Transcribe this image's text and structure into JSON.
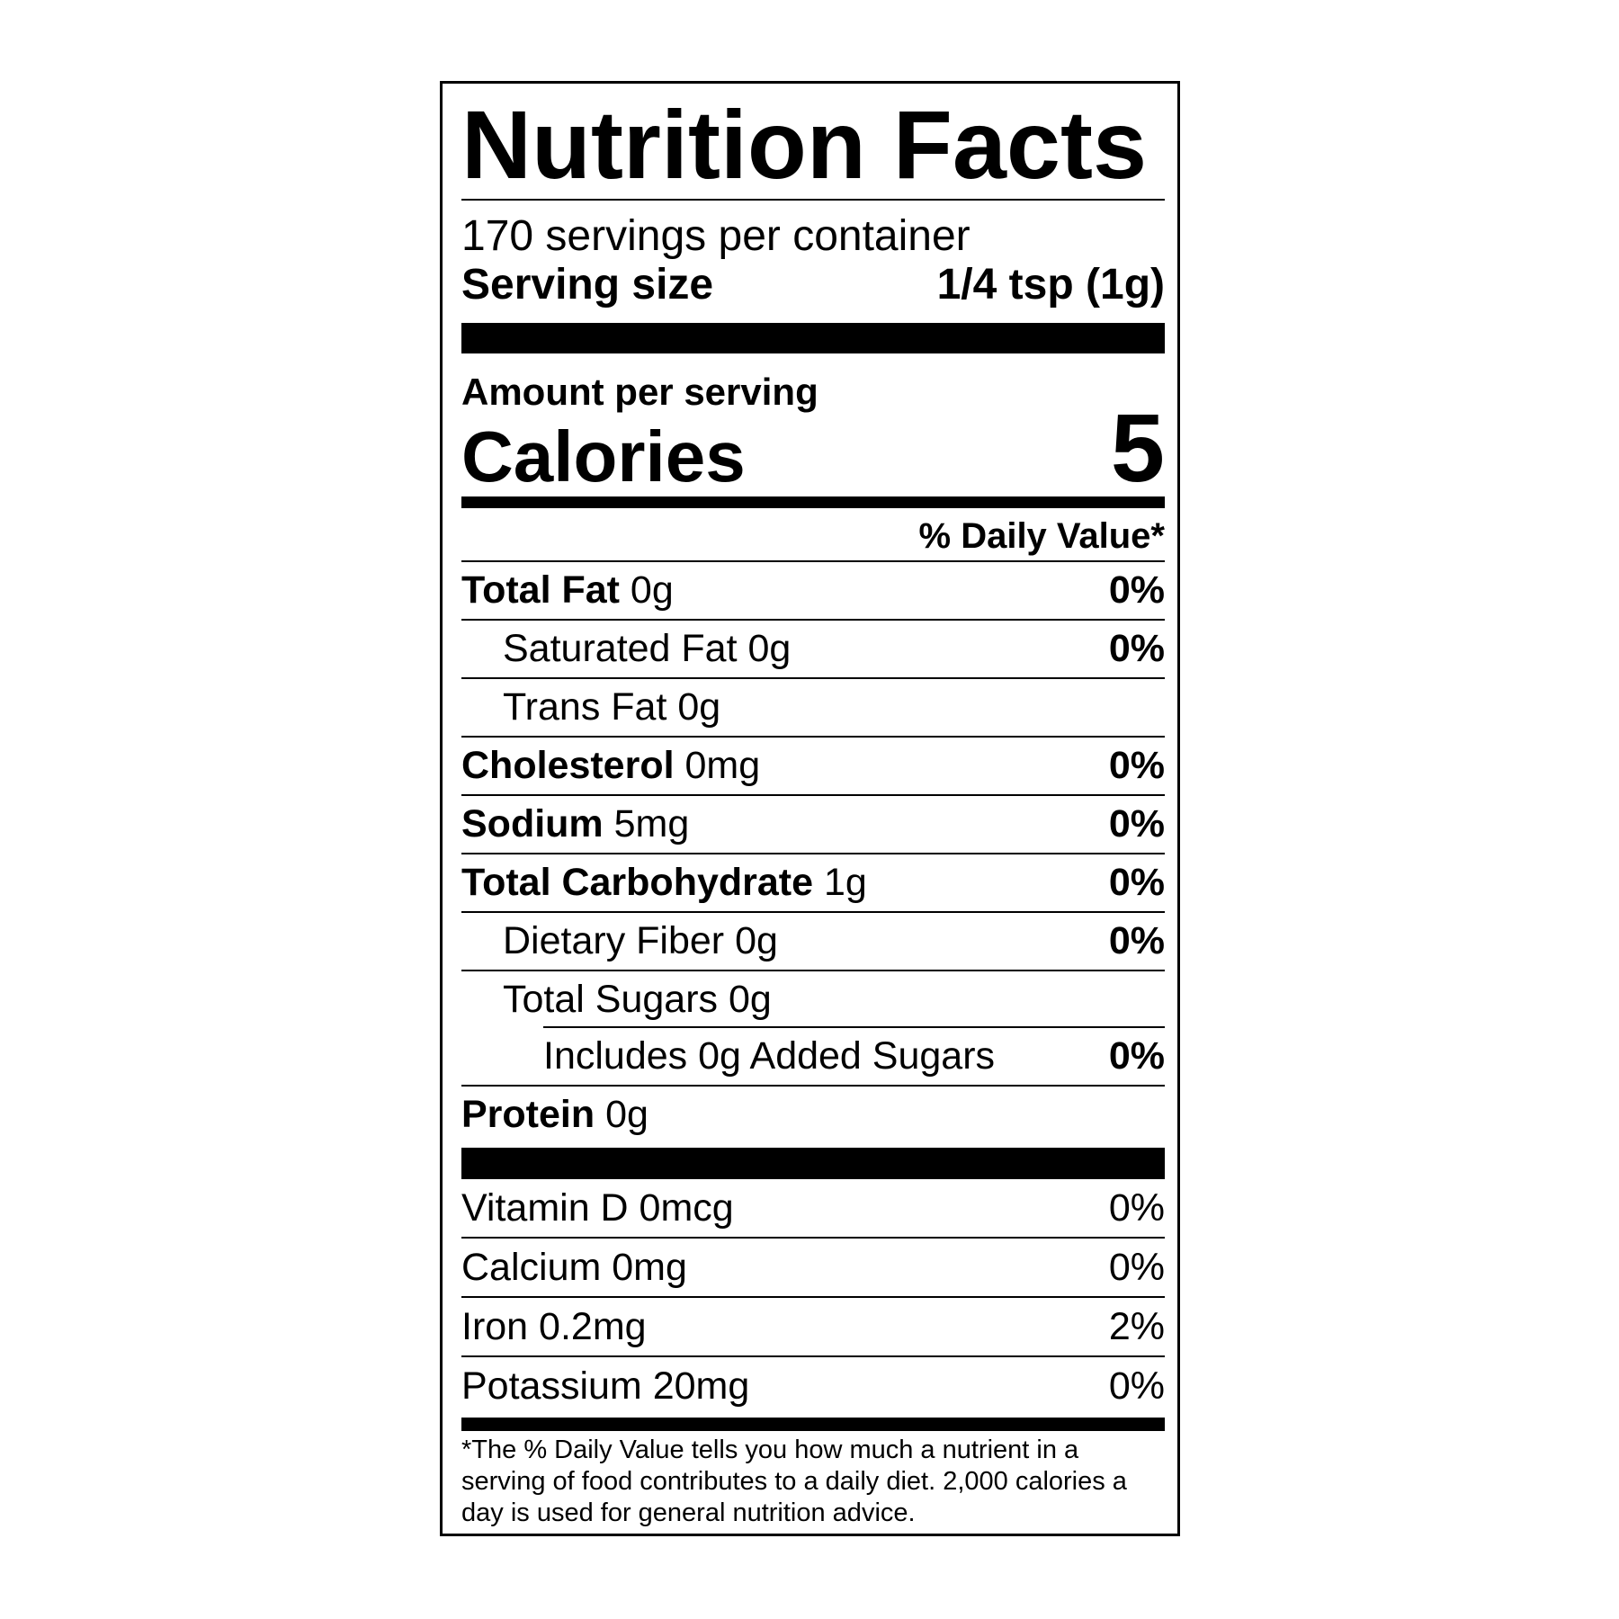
{
  "title": "Nutrition Facts",
  "servings_per_container": "170 servings per container",
  "serving_size": {
    "label": "Serving size",
    "value": "1/4 tsp (1g)"
  },
  "amount_per_serving": "Amount per serving",
  "calories": {
    "label": "Calories",
    "value": "5"
  },
  "daily_value_header": "% Daily Value*",
  "nutrients": [
    {
      "name": "Total Fat",
      "amount": "0g",
      "dv": "0%"
    },
    {
      "name": "Saturated Fat",
      "amount": "0g",
      "dv": "0%"
    },
    {
      "name": "Trans Fat",
      "amount": "0g",
      "dv": ""
    },
    {
      "name": "Cholesterol",
      "amount": "0mg",
      "dv": "0%"
    },
    {
      "name": "Sodium",
      "amount": "5mg",
      "dv": "0%"
    },
    {
      "name": "Total Carbohydrate",
      "amount": "1g",
      "dv": "0%"
    },
    {
      "name": "Dietary Fiber",
      "amount": "0g",
      "dv": "0%"
    },
    {
      "name": "Total Sugars",
      "amount": "0g",
      "dv": ""
    },
    {
      "name": "Includes 0g Added Sugars",
      "amount": "",
      "dv": "0%"
    },
    {
      "name": "Protein",
      "amount": "0g",
      "dv": ""
    }
  ],
  "vitamins": [
    {
      "text": "Vitamin D 0mcg",
      "dv": "0%"
    },
    {
      "text": "Calcium 0mg",
      "dv": "0%"
    },
    {
      "text": "Iron 0.2mg",
      "dv": "2%"
    },
    {
      "text": "Potassium 20mg",
      "dv": "0%"
    }
  ],
  "footnote": "*The % Daily Value tells you how much a nutrient in a serving of food contributes to a daily diet. 2,000 calories a day is used for general nutrition advice."
}
